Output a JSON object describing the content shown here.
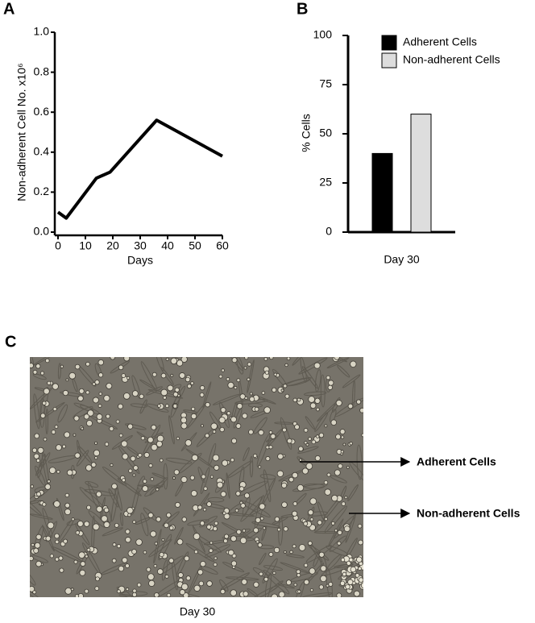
{
  "chart_data": [
    {
      "type": "line",
      "panel_label": "A",
      "x_label": "Days",
      "y_label": "Non-adherent Cell No. x10⁶",
      "x": [
        0,
        3,
        14,
        19,
        36,
        60
      ],
      "values": [
        0.1,
        0.07,
        0.27,
        0.3,
        0.56,
        0.38
      ],
      "color": "#000000",
      "xlim": [
        0,
        60
      ],
      "xticks": [
        0,
        10,
        20,
        30,
        40,
        50,
        60
      ],
      "ylim": [
        0,
        1
      ],
      "yticks": [
        {
          "value": 0,
          "label": "0.0"
        },
        0.2,
        0.4,
        0.6,
        0.8,
        {
          "value": 1,
          "label": "1.0"
        }
      ]
    },
    {
      "type": "bar",
      "panel_label": "B",
      "y_label": "% Cells",
      "categories": [
        "Day 30"
      ],
      "series": [
        {
          "name": "Adherent Cells",
          "color": "#000000",
          "values": [
            40
          ]
        },
        {
          "name": "Non-adherent Cells",
          "color": "#dddddd",
          "values": [
            60
          ]
        }
      ],
      "ylim": [
        0,
        100
      ],
      "yticks": [
        0,
        25,
        50,
        75,
        100
      ]
    }
  ],
  "panel_c": {
    "label": "C",
    "annotations": [
      "Adherent Cells",
      "Non-adherent Cells"
    ],
    "caption": "Day 30"
  }
}
